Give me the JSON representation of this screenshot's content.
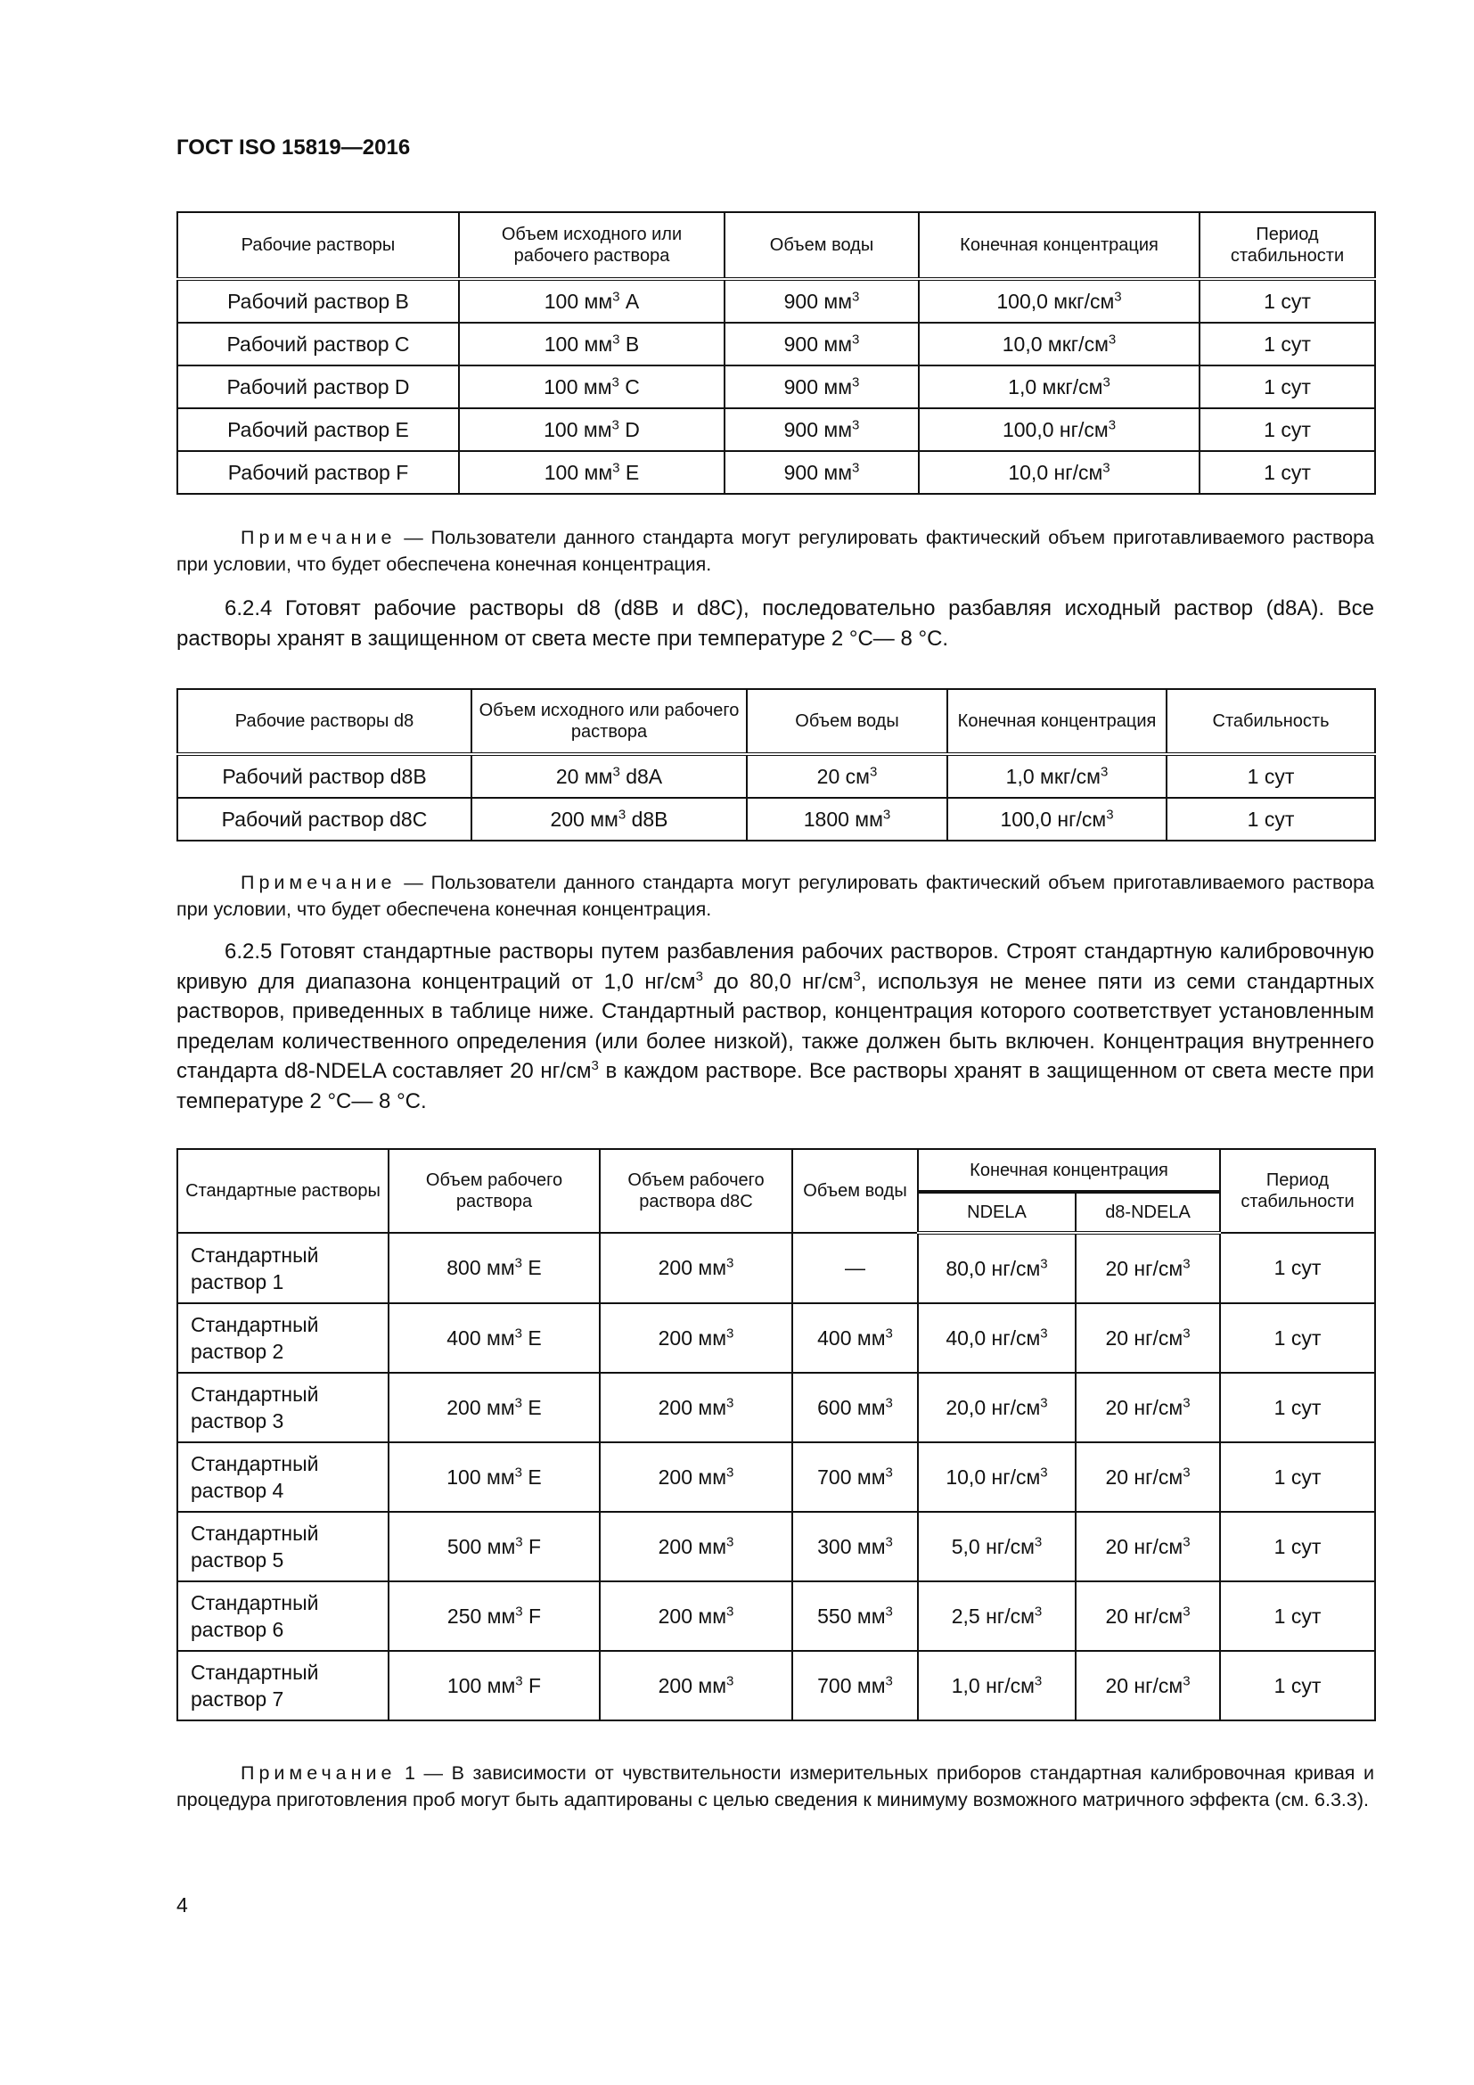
{
  "header": {
    "title": "ГОСТ ISO 15819—2016"
  },
  "table1": {
    "headers": [
      "Рабочие растворы",
      "Объем исходного или рабочего раствора",
      "Объем воды",
      "Конечная концентрация",
      "Период стабильности"
    ],
    "rows": [
      [
        "Рабочий раствор B",
        "100 мм",
        "A",
        "900 мм",
        "100,0 мкг/см",
        "1 сут"
      ],
      [
        "Рабочий раствор C",
        "100 мм",
        "B",
        "900 мм",
        "10,0 мкг/см",
        "1 сут"
      ],
      [
        "Рабочий раствор D",
        "100 мм",
        "C",
        "900 мм",
        "1,0 мкг/см",
        "1 сут"
      ],
      [
        "Рабочий раствор E",
        "100 мм",
        "D",
        "900 мм",
        "100,0 нг/см",
        "1 сут"
      ],
      [
        "Рабочий раствор F",
        "100 мм",
        "E",
        "900 мм",
        "10,0 нг/см",
        "1 сут"
      ]
    ]
  },
  "sup": "3",
  "note1": {
    "label": "Примечание",
    "text": " — Пользователи данного стандарта могут регулировать фактический объем приготавливаемого раствора при условии, что будет обеспечена конечная концентрация."
  },
  "para624": "6.2.4 Готовят рабочие растворы d8 (d8B и d8C), последовательно разбавляя исходный раствор (d8A). Все растворы хранят в защищенном от света месте при температуре 2 °C— 8 °C.",
  "table2": {
    "headers": [
      "Рабочие растворы d8",
      "Объем исходного или рабочего раствора",
      "Объем воды",
      "Конечная концентрация",
      "Стабильность"
    ],
    "rows": [
      [
        "Рабочий раствор d8B",
        "20 мм",
        "d8A",
        "20 см",
        "1,0 мкг/см",
        "1 сут"
      ],
      [
        "Рабочий раствор d8C",
        "200 мм",
        "d8B",
        "1800 мм",
        "100,0 нг/см",
        "1 сут"
      ]
    ]
  },
  "note2": {
    "label": "Примечание",
    "text": " — Пользователи данного стандарта могут регулировать фактический объем приготавливаемого раствора при условии, что будет обеспечена конечная концентрация."
  },
  "para625": {
    "part1": "6.2.5 Готовят стандартные растворы путем разбавления рабочих растворов. Строят стандартную калибровочную кривую для диапазона концентраций от 1,0 нг/см",
    "part2": " до 80,0 нг/см",
    "part3": ", используя не менее пяти из семи стандартных растворов, приведенных в таблице ниже. Стандартный раствор, концентрация которого соответствует установленным пределам количественного определения (или более низкой), также должен быть включен. Концентрация внутреннего стандарта d8-NDELA составляет 20 нг/см",
    "part4": " в каждом растворе. Все растворы хранят в защищенном от света месте при температуре 2 °C— 8 °C."
  },
  "table3": {
    "headers": [
      "Стандартные растворы",
      "Объем рабочего раствора",
      "Объем рабочего раствора d8C",
      "Объем воды",
      "Конечная концентрация",
      "Период стабильности"
    ],
    "subheaders": [
      "NDELA",
      "d8-NDELA"
    ],
    "rows": [
      [
        "Стандартный раствор 1",
        "800 мм",
        "E",
        "200 мм",
        "—",
        "80,0 нг/см",
        "20 нг/см",
        "1 сут"
      ],
      [
        "Стандартный раствор 2",
        "400 мм",
        "E",
        "200 мм",
        "400 мм",
        "40,0 нг/см",
        "20 нг/см",
        "1 сут"
      ],
      [
        "Стандартный раствор 3",
        "200 мм",
        "E",
        "200 мм",
        "600 мм",
        "20,0 нг/см",
        "20 нг/см",
        "1 сут"
      ],
      [
        "Стандартный раствор 4",
        "100 мм",
        "E",
        "200 мм",
        "700 мм",
        "10,0 нг/см",
        "20 нг/см",
        "1 сут"
      ],
      [
        "Стандартный раствор 5",
        "500 мм",
        "F",
        "200 мм",
        "300 мм",
        "5,0 нг/см",
        "20 нг/см",
        "1 сут"
      ],
      [
        "Стандартный раствор 6",
        "250 мм",
        "F",
        "200 мм",
        "550 мм",
        "2,5 нг/см",
        "20 нг/см",
        "1 сут"
      ],
      [
        "Стандартный раствор 7",
        "100 мм",
        "F",
        "200 мм",
        "700 мм",
        "1,0 нг/см",
        "20 нг/см",
        "1 сут"
      ]
    ]
  },
  "note3": {
    "label": "Примечание",
    "text": " 1 — В зависимости от чувствительности измерительных приборов стандартная калибровочная кривая и процедура приготовления проб могут быть адаптированы с целью сведения к минимуму возможного матричного эффекта (см. 6.3.3)."
  },
  "page_number": "4"
}
